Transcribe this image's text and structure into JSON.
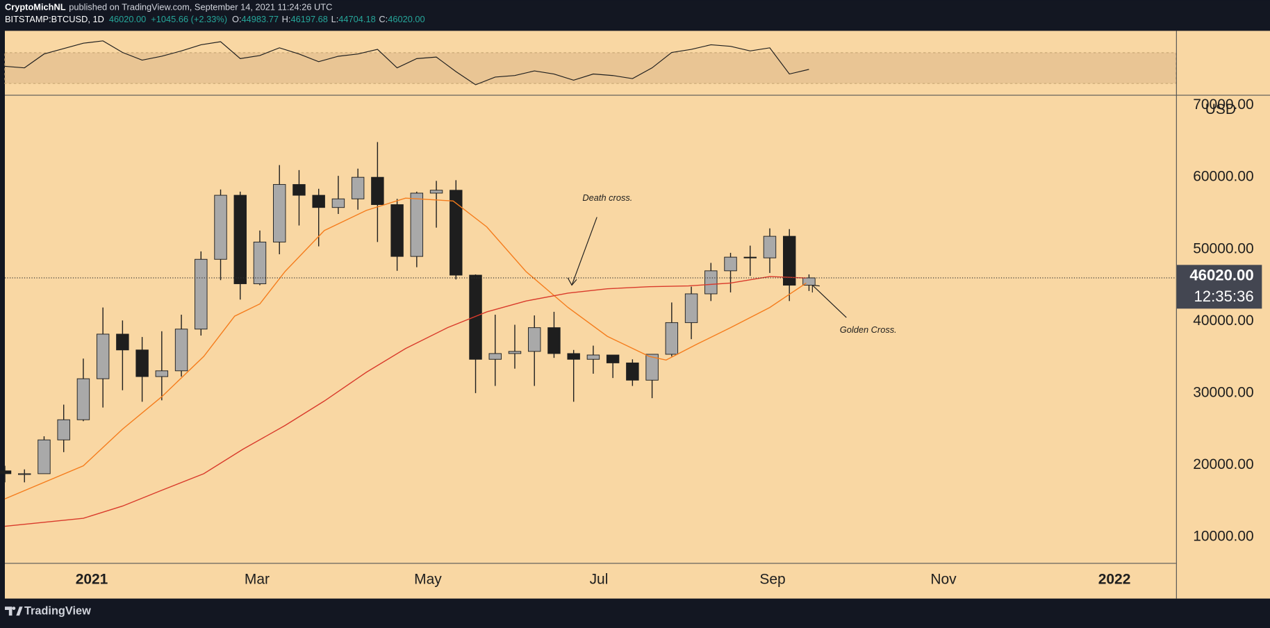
{
  "header": {
    "author": "CryptoMichNL",
    "published": "published on TradingView.com, September 14, 2021 11:24:26 UTC",
    "symbol": "BITSTAMP:BTCUSD, 1D",
    "price": "46020.00",
    "change": "+1045.66 (+2.33%)",
    "ohlc": [
      {
        "label": "O:",
        "value": "44983.77"
      },
      {
        "label": "H:",
        "value": "46197.68"
      },
      {
        "label": "L:",
        "value": "44704.18"
      },
      {
        "label": "C:",
        "value": "46020.00"
      }
    ]
  },
  "footer": {
    "brand": "TradingView"
  },
  "chart_data": [
    {
      "type": "candlestick",
      "up_color": "#a9a9a9",
      "down_color": "#1e1e1e",
      "grid": false,
      "x": [
        -31,
        -24,
        -17,
        -10,
        -3,
        4,
        11,
        18,
        25,
        32,
        39,
        46,
        53,
        60,
        67,
        74,
        81,
        88,
        95,
        102,
        109,
        116,
        123,
        130,
        137,
        144,
        151,
        158,
        165,
        172,
        179,
        186,
        193,
        200,
        207,
        214,
        221,
        228,
        235,
        242,
        249,
        256
      ],
      "open": [
        19200,
        18800,
        18800,
        23500,
        26300,
        32000,
        38200,
        36000,
        32300,
        33100,
        38900,
        48600,
        57500,
        45200,
        51000,
        59000,
        57500,
        55800,
        57000,
        60000,
        56200,
        49000,
        57800,
        58200,
        46400,
        34700,
        35500,
        35800,
        39100,
        35500,
        34700,
        35300,
        34200,
        31800,
        35400,
        39800,
        43800,
        47000,
        48900,
        48800,
        51800,
        45000
      ],
      "high": [
        19900,
        19400,
        24000,
        28400,
        34800,
        41900,
        40100,
        37800,
        38600,
        40900,
        49700,
        58300,
        58000,
        52600,
        61700,
        61000,
        58400,
        60200,
        61200,
        64900,
        57000,
        58000,
        59500,
        59600,
        46500,
        40900,
        39500,
        40800,
        41300,
        36000,
        36600,
        35300,
        34700,
        35400,
        42600,
        44800,
        48100,
        49500,
        50500,
        52900,
        52800,
        46500
      ],
      "low": [
        17600,
        17600,
        19000,
        21800,
        26100,
        28000,
        30400,
        28800,
        29000,
        32300,
        38000,
        45700,
        43000,
        45000,
        49300,
        53300,
        50400,
        54900,
        55500,
        51000,
        47000,
        47500,
        53000,
        45800,
        30000,
        31000,
        33400,
        31000,
        34900,
        28800,
        32700,
        32100,
        31000,
        29300,
        35100,
        37500,
        42800,
        44000,
        46300,
        46700,
        42800,
        44200
      ],
      "close": [
        18800,
        18800,
        23500,
        26300,
        32000,
        38200,
        36000,
        32300,
        33100,
        38900,
        48600,
        57500,
        45200,
        51000,
        59000,
        57500,
        55800,
        57000,
        60000,
        56200,
        49000,
        57800,
        58200,
        46400,
        34700,
        35500,
        35800,
        39100,
        35500,
        34700,
        35300,
        34200,
        31800,
        35400,
        39800,
        43800,
        47000,
        48900,
        48800,
        51800,
        45000,
        46020
      ],
      "series": [
        {
          "color": "#f57c1c",
          "x": [
            -31,
            -3,
            11,
            25,
            40,
            51,
            60,
            69,
            83,
            98,
            112,
            129,
            141,
            155,
            170,
            184,
            199,
            205,
            216,
            228,
            242,
            255
          ],
          "values": [
            15300,
            19900,
            25000,
            29500,
            35100,
            40700,
            42400,
            46900,
            52600,
            55400,
            57100,
            56700,
            53100,
            46900,
            41900,
            37900,
            35100,
            34600,
            36800,
            39100,
            41900,
            45300
          ]
        },
        {
          "color": "#d93a2b",
          "x": [
            -31,
            -3,
            11,
            25,
            40,
            54,
            69,
            83,
            98,
            112,
            127,
            141,
            155,
            170,
            184,
            199,
            213,
            228,
            242,
            255
          ],
          "values": [
            11500,
            12600,
            14300,
            16500,
            18800,
            22200,
            25500,
            28900,
            32900,
            36200,
            39100,
            41300,
            42800,
            43900,
            44500,
            44800,
            44900,
            45300,
            46200,
            46000
          ]
        }
      ],
      "xlim": [
        -31,
        387
      ],
      "xticks": [
        {
          "value": 0,
          "label": "2021"
        },
        {
          "value": 59,
          "label": "Mar"
        },
        {
          "value": 120,
          "label": "May"
        },
        {
          "value": 181,
          "label": "Jul"
        },
        {
          "value": 243,
          "label": "Sep"
        },
        {
          "value": 304,
          "label": "Nov"
        },
        {
          "value": 365,
          "label": "2022"
        }
      ],
      "ylim": [
        6400,
        71350
      ],
      "yticks": [
        {
          "value": 10000,
          "label": "10000.00"
        },
        {
          "value": 20000,
          "label": "20000.00"
        },
        {
          "value": 30000,
          "label": "30000.00"
        },
        {
          "value": 40000,
          "label": "40000.00"
        },
        {
          "value": 50000,
          "label": "50000.00"
        },
        {
          "value": 60000,
          "label": "60000.00"
        },
        {
          "value": 70000,
          "label": "70000.00"
        }
      ],
      "y_unit": "USD",
      "last_price": {
        "value": 46020,
        "label": "46020.00"
      },
      "countdown": "12:35:36",
      "annotations": [
        "Death cross.",
        "Golden Cross."
      ]
    },
    {
      "type": "line",
      "color": "#1e1e1e",
      "xlim": [
        -31,
        387
      ],
      "ylim": [
        17,
        96
      ],
      "x": [
        -31,
        -24,
        -17,
        -10,
        -3,
        4,
        11,
        18,
        25,
        32,
        39,
        46,
        53,
        60,
        67,
        74,
        81,
        88,
        95,
        102,
        109,
        116,
        123,
        130,
        137,
        144,
        151,
        158,
        165,
        172,
        179,
        186,
        193,
        200,
        207,
        214,
        221,
        228,
        235,
        242,
        249,
        256
      ],
      "values": [
        52,
        50,
        68,
        75,
        82,
        85,
        70,
        60,
        65,
        72,
        80,
        84,
        62,
        66,
        76,
        68,
        58,
        65,
        68,
        74,
        50,
        62,
        64,
        45,
        28,
        38,
        40,
        46,
        42,
        34,
        42,
        40,
        36,
        50,
        70,
        74,
        80,
        78,
        72,
        76,
        42,
        48
      ]
    }
  ]
}
